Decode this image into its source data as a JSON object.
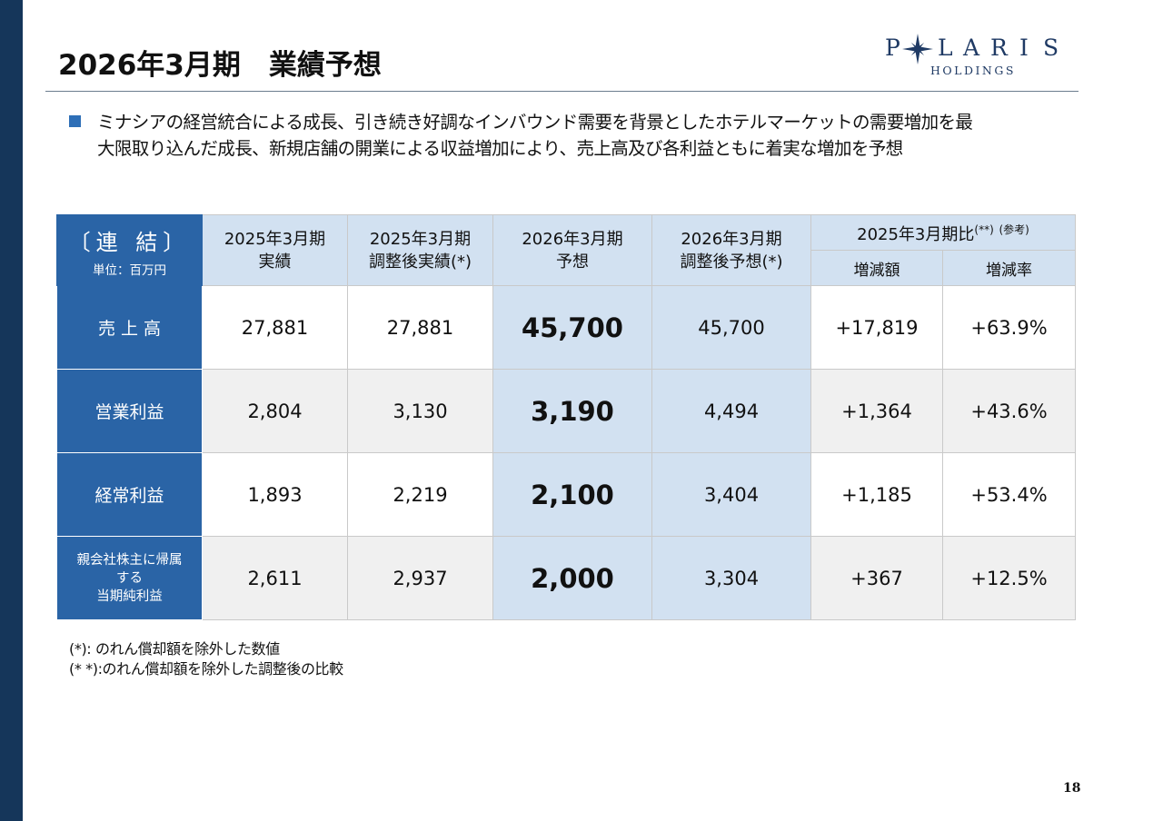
{
  "title": "2026年3月期　業績予想",
  "logo": {
    "letters": [
      "P",
      "L",
      "A",
      "R",
      "I",
      "S"
    ],
    "sub": "HOLDINGS"
  },
  "bullet": {
    "line1": "ミナシアの経営統合による成長、引き続き好調なインバウンド需要を背景としたホテルマーケットの需要増加を最",
    "line2": "大限取り込んだ成長、新規店舗の開業による収益増加により、売上高及び各利益ともに着実な増加を予想"
  },
  "table": {
    "corner_label": "〔連 結〕",
    "unit_label": "単位：百万円",
    "headers": [
      {
        "line1": "2025年3月期",
        "line2": "実績"
      },
      {
        "line1": "2025年3月期",
        "line2": "調整後実績(*)"
      },
      {
        "line1": "2026年3月期",
        "line2": "予想"
      },
      {
        "line1": "2026年3月期",
        "line2": "調整後予想(*)"
      }
    ],
    "comparison_header": "2025年3月期比",
    "comparison_mark": "(**)",
    "comparison_note": "(参考)",
    "sub_headers": [
      "増減額",
      "増減率"
    ],
    "rows": [
      {
        "label": "売 上 高",
        "values": [
          "27,881",
          "27,881",
          "45,700",
          "45,700",
          "+17,819",
          "+63.9%"
        ]
      },
      {
        "label": "営業利益",
        "values": [
          "2,804",
          "3,130",
          "3,190",
          "4,494",
          "+1,364",
          "+43.6%"
        ]
      },
      {
        "label": "経常利益",
        "values": [
          "1,893",
          "2,219",
          "2,100",
          "3,404",
          "+1,185",
          "+53.4%"
        ]
      },
      {
        "label_lines": [
          "親会社株主に帰属",
          "する",
          "当期純利益"
        ],
        "values": [
          "2,611",
          "2,937",
          "2,000",
          "3,304",
          "+367",
          "+12.5%"
        ]
      }
    ]
  },
  "footnotes": [
    "(*): のれん償却額を除外した数値",
    "(* *):のれん償却額を除外した調整後の比較"
  ],
  "page_number": "18",
  "colors": {
    "left_bar": "#15365a",
    "header_blue": "#2a64a6",
    "light_blue": "#d2e1f1",
    "bullet": "#2e6fb7",
    "logo": "#1f3a64"
  }
}
